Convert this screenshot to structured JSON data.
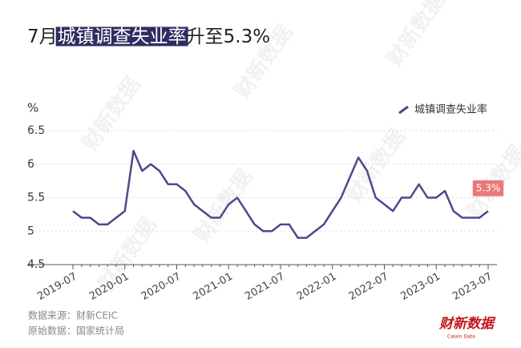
{
  "chart_data": {
    "type": "line",
    "title": [
      "7月",
      "城镇调查失业率",
      "升至5.3%"
    ],
    "y_label": "%",
    "categories": [
      "2019-07",
      null,
      null,
      null,
      null,
      null,
      "2020-01",
      null,
      null,
      null,
      null,
      null,
      "2020-07",
      null,
      null,
      null,
      null,
      null,
      "2021-01",
      null,
      null,
      null,
      null,
      null,
      "2021-07",
      null,
      null,
      null,
      null,
      null,
      "2022-01",
      null,
      null,
      null,
      null,
      null,
      "2022-07",
      null,
      null,
      null,
      null,
      null,
      "2023-01",
      null,
      null,
      null,
      null,
      null,
      "2023-07"
    ],
    "series": [
      {
        "name": "城镇调查失业率",
        "color": "#4b4a8c",
        "values": [
          5.3,
          5.2,
          5.2,
          5.1,
          5.1,
          5.2,
          5.3,
          6.2,
          5.9,
          6.0,
          5.9,
          5.7,
          5.7,
          5.6,
          5.4,
          5.3,
          5.2,
          5.2,
          5.4,
          5.5,
          5.3,
          5.1,
          5.0,
          5.0,
          5.1,
          5.1,
          4.9,
          4.9,
          5.0,
          5.1,
          5.3,
          5.5,
          5.8,
          6.1,
          5.9,
          5.5,
          5.4,
          5.3,
          5.5,
          5.5,
          5.7,
          5.5,
          5.5,
          5.6,
          5.3,
          5.2,
          5.2,
          5.2,
          5.3
        ]
      }
    ],
    "ylim": [
      4.5,
      6.5
    ],
    "yticks": [
      4.5,
      5,
      5.5,
      6,
      6.5
    ],
    "grid": true,
    "annotation": "5.3%",
    "source": "数据来源：财新CEIC",
    "original_source": "原始数据：国家统计局",
    "logo": "财新数据",
    "logo_sub": "Caixin Data",
    "watermark": "财新数据"
  }
}
